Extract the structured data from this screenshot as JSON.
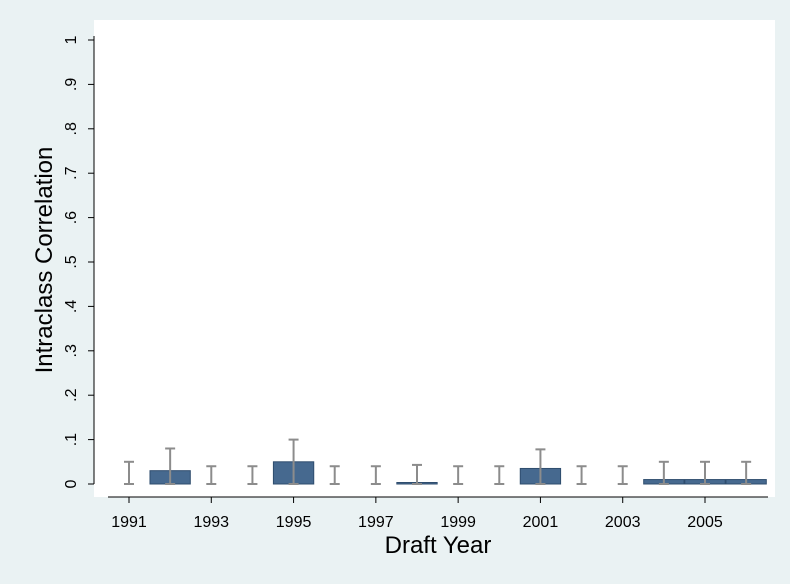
{
  "colors": {
    "background": "#eaf2f3",
    "plot_background": "#ffffff",
    "bar": "#46698f",
    "bar_stroke": "#2f4d6e",
    "error_bar": "#8c8c8c",
    "axis": "#000000"
  },
  "chart_data": {
    "type": "bar",
    "xlabel": "Draft Year",
    "ylabel": "Intraclass Correlation",
    "ylim": [
      0,
      1
    ],
    "xlim": [
      1990.5,
      2006.6
    ],
    "grid": false,
    "legend": "none",
    "yticks": [
      0,
      0.1,
      0.2,
      0.3,
      0.4,
      0.5,
      0.6,
      0.7,
      0.8,
      0.9,
      1
    ],
    "ytick_labels": [
      "0",
      ".1",
      ".2",
      ".3",
      ".4",
      ".5",
      ".6",
      ".7",
      ".8",
      ".9",
      "1"
    ],
    "xticks": [
      1991,
      1993,
      1995,
      1997,
      1999,
      2001,
      2003,
      2005
    ],
    "xtick_labels": [
      "1991",
      "1993",
      "1995",
      "1997",
      "1999",
      "2001",
      "2003",
      "2005"
    ],
    "x": [
      1991,
      1992,
      1993,
      1994,
      1995,
      1996,
      1997,
      1998,
      1999,
      2000,
      2001,
      2002,
      2003,
      2004,
      2005,
      2006
    ],
    "values": [
      0,
      0.03,
      0,
      0,
      0.05,
      0,
      0,
      0.003,
      0,
      0,
      0.035,
      0,
      0,
      0.01,
      0.01,
      0.01
    ],
    "error_upper": [
      0.05,
      0.08,
      0.04,
      0.04,
      0.1,
      0.04,
      0.04,
      0.043,
      0.04,
      0.04,
      0.078,
      0.04,
      0.04,
      0.05,
      0.05,
      0.05
    ],
    "error_lower": [
      0,
      0,
      0,
      0,
      0,
      0,
      0,
      0,
      0,
      0,
      0,
      0,
      0,
      0,
      0,
      0
    ]
  }
}
